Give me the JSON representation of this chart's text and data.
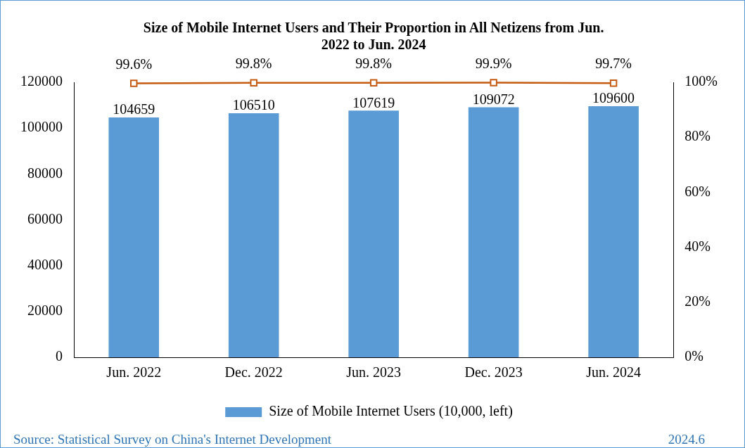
{
  "chart_data": {
    "type": "bar",
    "title": "Size of Mobile Internet Users and Their Proportion in All Netizens from Jun. 2022 to Jun. 2024",
    "categories": [
      "Jun. 2022",
      "Dec. 2022",
      "Jun. 2023",
      "Dec. 2023",
      "Jun. 2024"
    ],
    "series": [
      {
        "name": "Size of Mobile Internet Users (10,000, left)",
        "color": "#5b9bd5",
        "values": [
          104659,
          106510,
          107619,
          109072,
          109600
        ],
        "value_labels": [
          "104659",
          "106510",
          "107619",
          "109072",
          "109600"
        ]
      },
      {
        "type": "line",
        "axis": "y2",
        "color": "#c55a11",
        "values": [
          99.6,
          99.8,
          99.8,
          99.9,
          99.7
        ],
        "value_labels": [
          "99.6%",
          "99.8%",
          "99.8%",
          "99.9%",
          "99.7%"
        ]
      }
    ],
    "ylim": [
      0,
      120000
    ],
    "yticks": [
      0,
      20000,
      40000,
      60000,
      80000,
      100000,
      120000
    ],
    "y2lim": [
      0,
      100
    ],
    "y2ticks": [
      {
        "value": 0,
        "label": "0%"
      },
      {
        "value": 20,
        "label": "20%"
      },
      {
        "value": 40,
        "label": "40%"
      },
      {
        "value": 60,
        "label": "60%"
      },
      {
        "value": 80,
        "label": "80%"
      },
      {
        "value": 100,
        "label": "100%"
      }
    ],
    "marker": "square",
    "legend": "bottom",
    "grid": false,
    "annotations": [
      "Source: Statistical Survey on China's Internet Development",
      "2024.6"
    ]
  }
}
